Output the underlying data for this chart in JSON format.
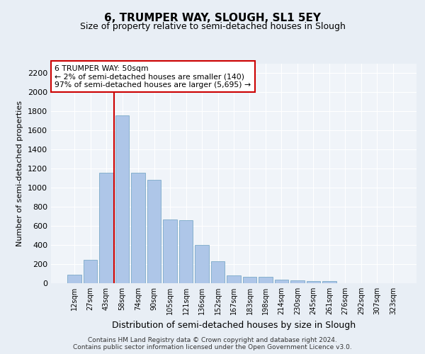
{
  "title": "6, TRUMPER WAY, SLOUGH, SL1 5EY",
  "subtitle": "Size of property relative to semi-detached houses in Slough",
  "xlabel": "Distribution of semi-detached houses by size in Slough",
  "ylabel": "Number of semi-detached properties",
  "bar_labels": [
    "12sqm",
    "27sqm",
    "43sqm",
    "58sqm",
    "74sqm",
    "90sqm",
    "105sqm",
    "121sqm",
    "136sqm",
    "152sqm",
    "167sqm",
    "183sqm",
    "198sqm",
    "214sqm",
    "230sqm",
    "245sqm",
    "261sqm",
    "276sqm",
    "292sqm",
    "307sqm",
    "323sqm"
  ],
  "bar_values": [
    90,
    245,
    1160,
    1760,
    1160,
    1085,
    665,
    660,
    400,
    230,
    80,
    70,
    65,
    40,
    30,
    25,
    20,
    0,
    0,
    0,
    0
  ],
  "bar_color": "#aec6e8",
  "bar_edge_color": "#6a9fc0",
  "vline_color": "#cc0000",
  "vline_x": 2.5,
  "annotation_title": "6 TRUMPER WAY: 50sqm",
  "annotation_line1": "← 2% of semi-detached houses are smaller (140)",
  "annotation_line2": "97% of semi-detached houses are larger (5,695) →",
  "annotation_box_edge_color": "#cc0000",
  "ylim": [
    0,
    2300
  ],
  "yticks": [
    0,
    200,
    400,
    600,
    800,
    1000,
    1200,
    1400,
    1600,
    1800,
    2000,
    2200
  ],
  "footer1": "Contains HM Land Registry data © Crown copyright and database right 2024.",
  "footer2": "Contains public sector information licensed under the Open Government Licence v3.0.",
  "bg_color": "#e8eef5",
  "plot_bg_color": "#f0f4f9",
  "grid_color": "#ffffff",
  "title_fontsize": 11,
  "subtitle_fontsize": 9,
  "ylabel_fontsize": 8,
  "xlabel_fontsize": 9,
  "ytick_fontsize": 8,
  "xtick_fontsize": 7
}
